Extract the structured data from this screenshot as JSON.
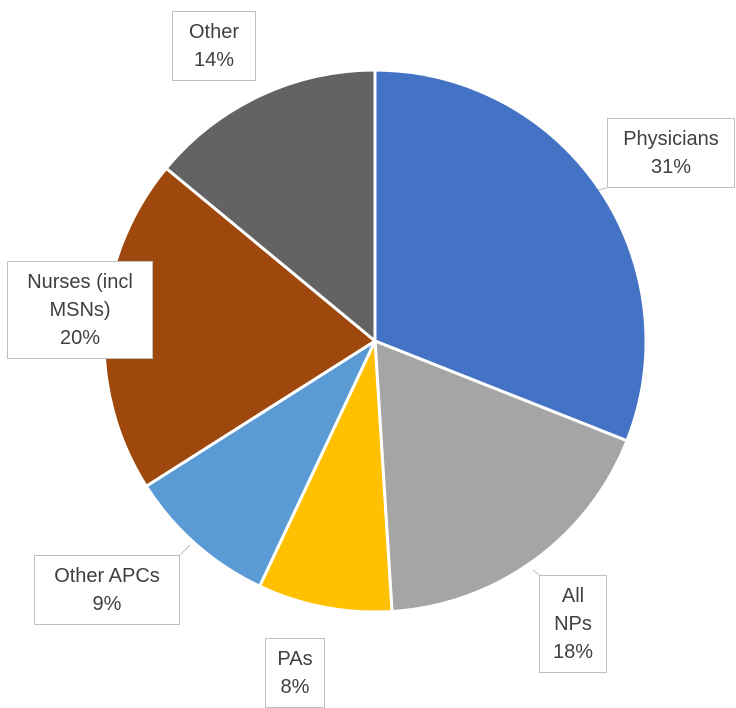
{
  "chart_data": {
    "type": "pie",
    "categories": [
      "Physicians",
      "All NPs",
      "PAs",
      "Other APCs",
      "Nurses (incl MSNs)",
      "Other"
    ],
    "values": [
      31,
      18,
      8,
      9,
      20,
      14
    ],
    "value_labels": [
      "31%",
      "18%",
      "8%",
      "9%",
      "20%",
      "14%"
    ],
    "colors": [
      "#4472c4",
      "#a5a5a5",
      "#ffc000",
      "#5b9bd5",
      "#9e480e",
      "#636363"
    ]
  }
}
